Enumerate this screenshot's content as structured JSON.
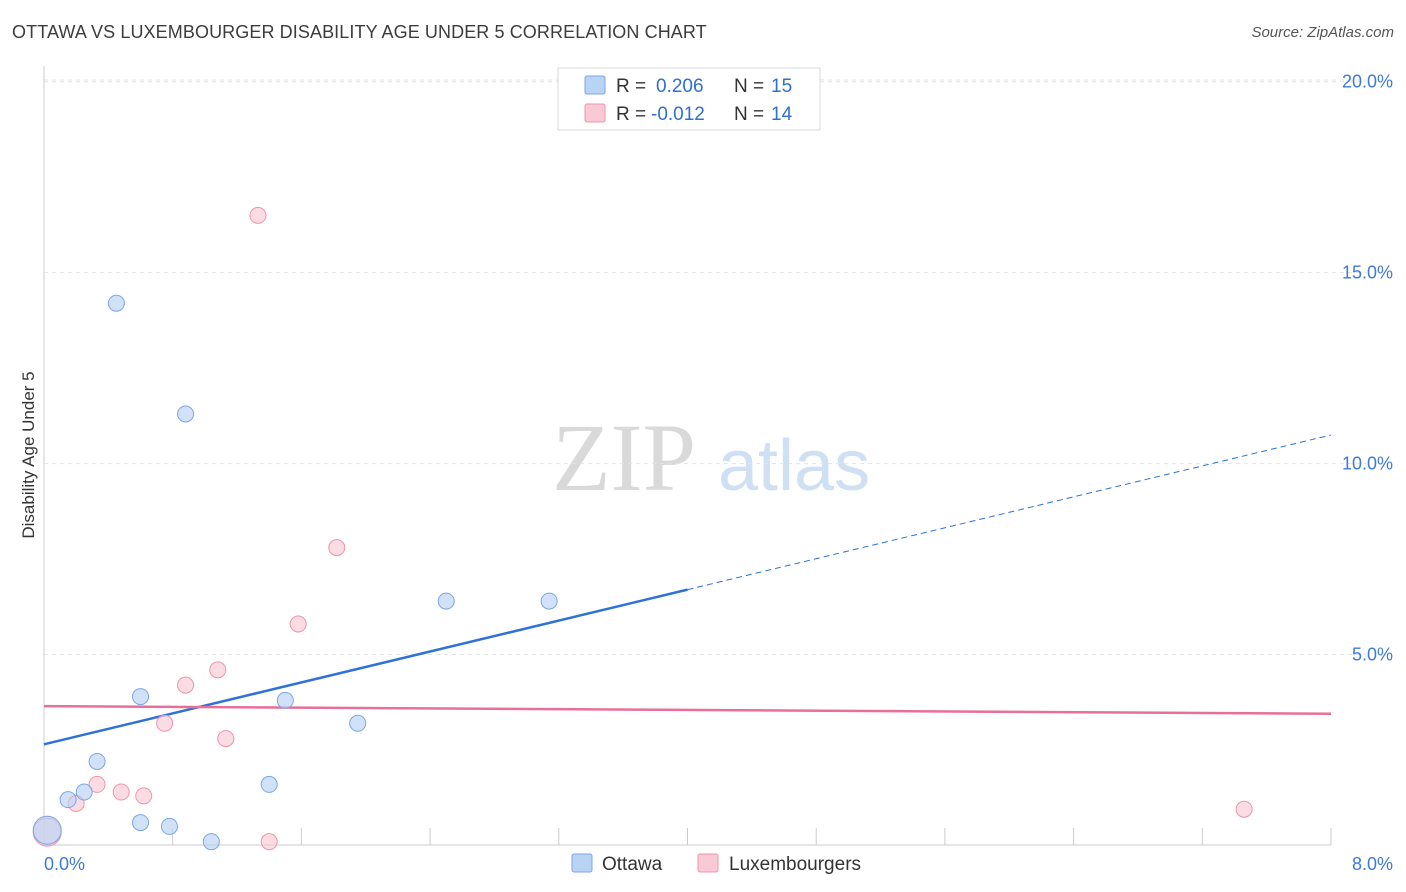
{
  "header": {
    "title": "OTTAWA VS LUXEMBOURGER DISABILITY AGE UNDER 5 CORRELATION CHART",
    "source": "Source: ZipAtlas.com"
  },
  "watermark": {
    "zip": "ZIP",
    "atlas": "atlas"
  },
  "legend_top": {
    "rows": [
      {
        "r_label": "R = ",
        "r_value": "0.206",
        "n_label": "N = ",
        "n_value": "15",
        "color": "#b9d3f5",
        "stroke": "#7aa6e6"
      },
      {
        "r_label": "R = ",
        "r_value": "-0.012",
        "n_label": "N = ",
        "n_value": "14",
        "color": "#f9c9d6",
        "stroke": "#ee94ad"
      }
    ]
  },
  "legend_bottom": {
    "items": [
      {
        "label": "Ottawa",
        "color": "#b9d3f5",
        "stroke": "#7aa6e6"
      },
      {
        "label": "Luxembourgers",
        "color": "#f9c9d6",
        "stroke": "#ee94ad"
      }
    ]
  },
  "chart_data": {
    "type": "scatter",
    "title": "OTTAWA VS LUXEMBOURGER DISABILITY AGE UNDER 5 CORRELATION CHART",
    "xlabel": "",
    "ylabel": "Disability Age Under 5",
    "xlim": [
      0,
      8
    ],
    "ylim": [
      0,
      20
    ],
    "x_tick_labels": [
      "0.0%",
      "8.0%"
    ],
    "y_ticks": [
      5,
      10,
      15,
      20
    ],
    "y_tick_labels": [
      "5.0%",
      "10.0%",
      "15.0%",
      "20.0%"
    ],
    "grid": true,
    "legend_position": "top-center",
    "series": [
      {
        "name": "Ottawa",
        "color": "#7aa6e6",
        "fill": "#b9d3f5",
        "points": [
          [
            0.02,
            0.4
          ],
          [
            0.15,
            1.2
          ],
          [
            0.25,
            1.4
          ],
          [
            0.33,
            2.2
          ],
          [
            0.45,
            14.2
          ],
          [
            0.6,
            3.9
          ],
          [
            0.6,
            0.6
          ],
          [
            0.78,
            0.5
          ],
          [
            0.88,
            11.3
          ],
          [
            1.04,
            0.1
          ],
          [
            1.4,
            1.6
          ],
          [
            1.5,
            3.8
          ],
          [
            1.95,
            3.2
          ],
          [
            2.5,
            6.4
          ],
          [
            3.14,
            6.4
          ]
        ],
        "trend": {
          "x": [
            0,
            4.0
          ],
          "y": [
            2.65,
            6.7
          ],
          "extended_x": [
            4.0,
            8.0
          ],
          "extended_y": [
            6.7,
            10.75
          ]
        }
      },
      {
        "name": "Luxembourgers",
        "color": "#ee94ad",
        "fill": "#f9c9d6",
        "points": [
          [
            0.02,
            0.35
          ],
          [
            0.2,
            1.1
          ],
          [
            0.33,
            1.6
          ],
          [
            0.48,
            1.4
          ],
          [
            0.62,
            1.3
          ],
          [
            0.75,
            3.2
          ],
          [
            0.88,
            4.2
          ],
          [
            1.08,
            4.6
          ],
          [
            1.13,
            2.8
          ],
          [
            1.33,
            16.5
          ],
          [
            1.4,
            0.1
          ],
          [
            1.58,
            5.8
          ],
          [
            1.82,
            7.8
          ],
          [
            7.46,
            0.95
          ]
        ],
        "trend": {
          "x": [
            0,
            8.0
          ],
          "y": [
            3.65,
            3.45
          ]
        }
      }
    ]
  }
}
